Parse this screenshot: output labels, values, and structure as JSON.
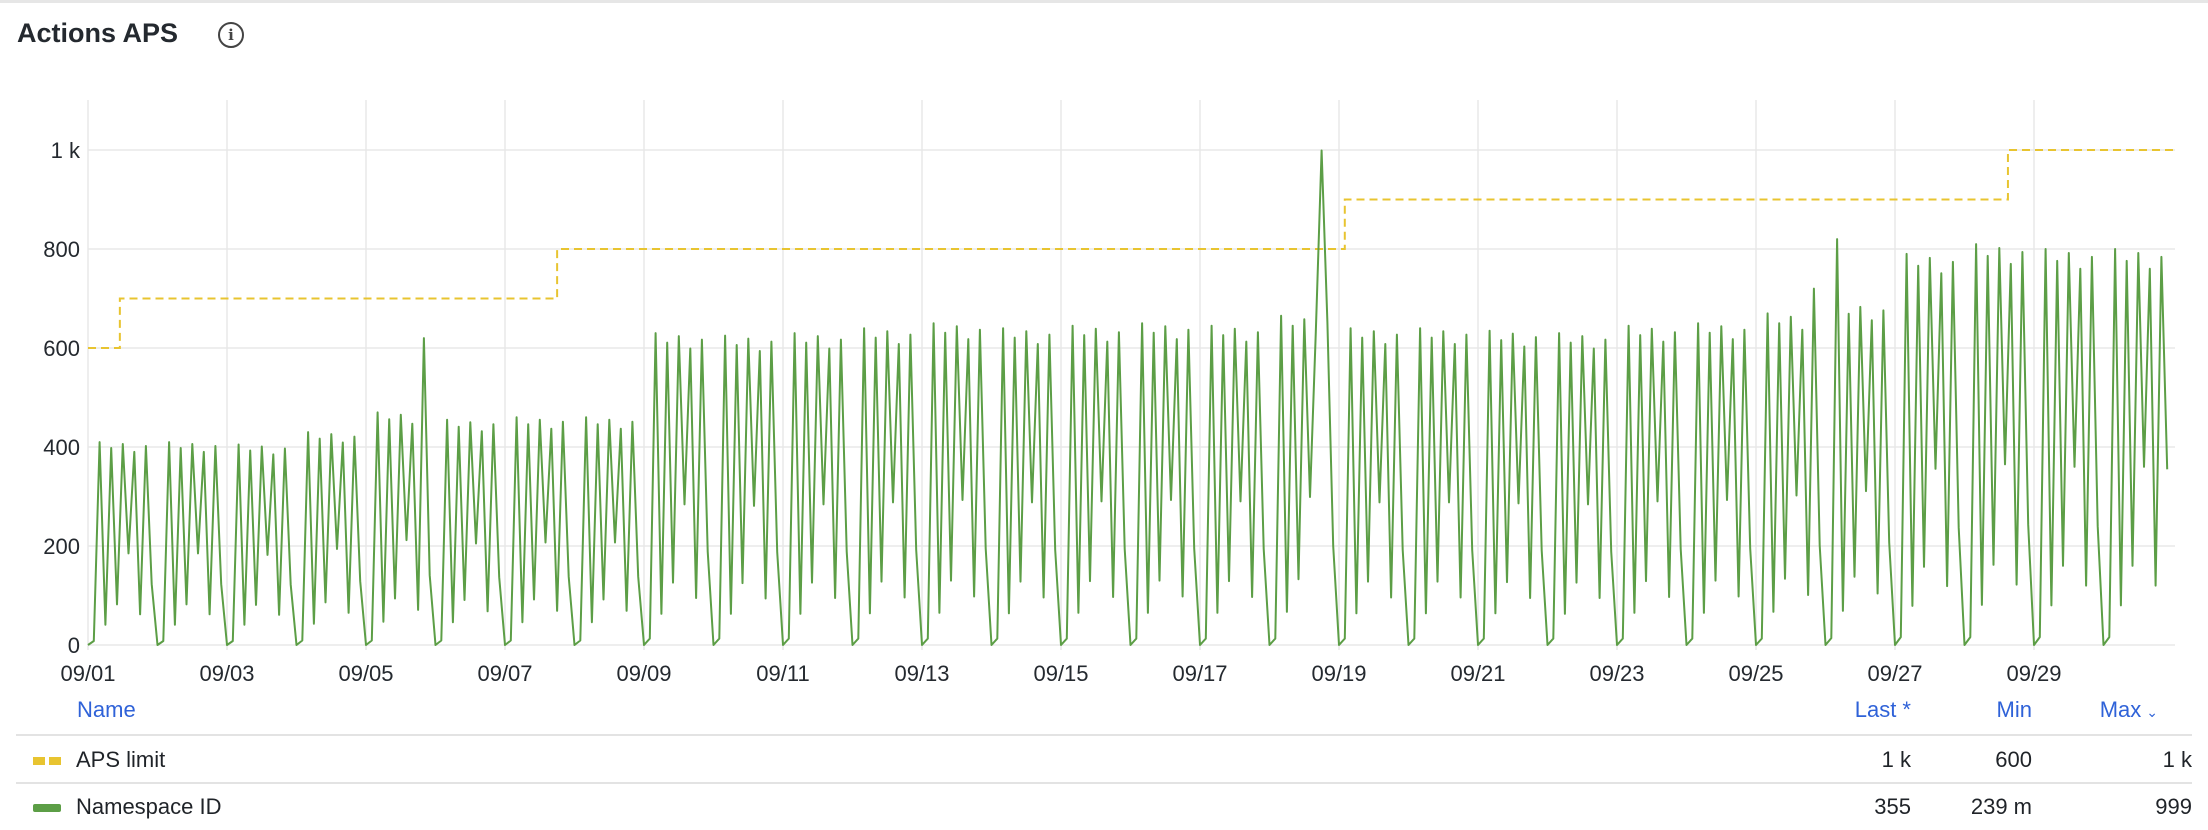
{
  "panel": {
    "title": "Actions APS",
    "info_icon": "info-circle-icon"
  },
  "legend": {
    "headers": {
      "name": "Name",
      "last": "Last *",
      "min": "Min",
      "max": "Max",
      "sort_icon": "chevron-down-icon"
    },
    "rows": [
      {
        "name": "APS limit",
        "last": "1 k",
        "min": "600",
        "max": "1 k",
        "color": "#e8c430",
        "style": "dashed"
      },
      {
        "name": "Namespace ID",
        "last": "355",
        "min": "239 m",
        "max": "999",
        "color": "#5c9e46",
        "style": "solid"
      }
    ]
  },
  "chart_data": {
    "type": "line",
    "title": "Actions APS",
    "x_start": "09/01",
    "x_end": "10/01",
    "x_tick_labels": [
      "09/01",
      "09/03",
      "09/05",
      "09/07",
      "09/09",
      "09/11",
      "09/13",
      "09/15",
      "09/17",
      "09/19",
      "09/21",
      "09/23",
      "09/25",
      "09/27",
      "09/29"
    ],
    "y_tick_labels": [
      "0",
      "200",
      "400",
      "600",
      "800",
      "1 k"
    ],
    "y_ticks": [
      0,
      200,
      400,
      600,
      800,
      1000
    ],
    "ylim": [
      0,
      1100
    ],
    "grid": true,
    "legend_placement": "bottom",
    "series": [
      {
        "name": "APS limit",
        "color": "#e8c430",
        "style": "dashed-step",
        "points_hours_since_0901": [
          [
            0,
            600
          ],
          [
            11,
            700
          ],
          [
            162,
            800
          ],
          [
            434,
            900
          ],
          [
            663,
            1000
          ],
          [
            720,
            1000
          ]
        ]
      },
      {
        "name": "Namespace ID",
        "color": "#5c9e46",
        "style": "solid",
        "sample_interval_hours": 2,
        "daily_values": [
          [
            0,
            8,
            410,
            41,
            398,
            82,
            406,
            185,
            390,
            62,
            402,
            123
          ],
          [
            0,
            8,
            410,
            41,
            398,
            82,
            406,
            185,
            390,
            62,
            402,
            123
          ],
          [
            0,
            8,
            405,
            41,
            393,
            81,
            401,
            182,
            385,
            61,
            397,
            122
          ],
          [
            0,
            9,
            430,
            43,
            417,
            86,
            426,
            194,
            409,
            65,
            421,
            129
          ],
          [
            0,
            9,
            470,
            47,
            456,
            94,
            465,
            212,
            447,
            71,
            620,
            141
          ],
          [
            0,
            9,
            455,
            46,
            441,
            91,
            450,
            205,
            432,
            68,
            446,
            137
          ],
          [
            0,
            9,
            460,
            46,
            446,
            92,
            455,
            207,
            437,
            69,
            451,
            138
          ],
          [
            0,
            9,
            460,
            46,
            446,
            92,
            455,
            207,
            437,
            69,
            451,
            138
          ],
          [
            0,
            13,
            630,
            63,
            611,
            126,
            624,
            284,
            599,
            95,
            617,
            189
          ],
          [
            0,
            13,
            625,
            63,
            606,
            125,
            619,
            281,
            594,
            94,
            613,
            188
          ],
          [
            0,
            13,
            630,
            63,
            611,
            126,
            624,
            284,
            599,
            95,
            617,
            189
          ],
          [
            0,
            13,
            640,
            64,
            621,
            128,
            634,
            288,
            608,
            96,
            627,
            192
          ],
          [
            0,
            13,
            650,
            65,
            631,
            130,
            644,
            293,
            618,
            98,
            637,
            195
          ],
          [
            0,
            13,
            640,
            64,
            621,
            128,
            634,
            288,
            608,
            96,
            627,
            192
          ],
          [
            0,
            13,
            645,
            65,
            626,
            129,
            639,
            290,
            613,
            97,
            632,
            194
          ],
          [
            0,
            13,
            650,
            65,
            631,
            130,
            644,
            293,
            618,
            98,
            637,
            195
          ],
          [
            0,
            13,
            645,
            65,
            626,
            129,
            639,
            290,
            613,
            97,
            632,
            194
          ],
          [
            0,
            13,
            665,
            67,
            645,
            133,
            658,
            299,
            632,
            999,
            652,
            200
          ],
          [
            0,
            13,
            640,
            64,
            621,
            128,
            634,
            288,
            608,
            96,
            627,
            192
          ],
          [
            0,
            13,
            640,
            64,
            621,
            128,
            634,
            288,
            608,
            96,
            627,
            192
          ],
          [
            0,
            13,
            635,
            64,
            616,
            127,
            629,
            286,
            603,
            95,
            622,
            191
          ],
          [
            0,
            13,
            630,
            63,
            611,
            126,
            624,
            284,
            599,
            95,
            617,
            189
          ],
          [
            0,
            13,
            645,
            65,
            626,
            129,
            639,
            290,
            613,
            97,
            632,
            194
          ],
          [
            0,
            13,
            650,
            65,
            631,
            130,
            644,
            293,
            618,
            98,
            637,
            195
          ],
          [
            0,
            13,
            670,
            67,
            650,
            134,
            663,
            302,
            637,
            101,
            720,
            201
          ],
          [
            0,
            14,
            820,
            69,
            669,
            138,
            683,
            311,
            656,
            104,
            676,
            207
          ],
          [
            0,
            16,
            790,
            79,
            766,
            158,
            782,
            356,
            751,
            119,
            774,
            237
          ],
          [
            0,
            16,
            810,
            81,
            786,
            162,
            802,
            365,
            770,
            122,
            794,
            243
          ],
          [
            0,
            16,
            800,
            80,
            776,
            160,
            792,
            360,
            760,
            120,
            784,
            240
          ],
          [
            0,
            16,
            800,
            80,
            776,
            160,
            792,
            360,
            760,
            120,
            784,
            355
          ]
        ]
      }
    ]
  }
}
